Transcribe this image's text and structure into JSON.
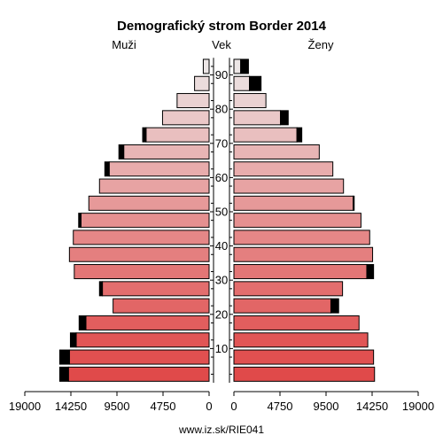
{
  "chart_data": {
    "type": "bar",
    "title": "Demografický strom Border 2014",
    "left_label": "Muži",
    "center_label": "Vek",
    "right_label": "Ženy",
    "footer": "www.iz.sk/RIE041",
    "x_max": 19000,
    "x_ticks_left": [
      "19000",
      "14250",
      "9500",
      "4750",
      "0"
    ],
    "x_ticks_right": [
      "0",
      "4750",
      "9500",
      "14250",
      "19000"
    ],
    "age_ticks": [
      10,
      20,
      30,
      40,
      50,
      60,
      70,
      80,
      90
    ],
    "age_groups": [
      "0-4",
      "5-9",
      "10-14",
      "15-19",
      "20-24",
      "25-29",
      "30-34",
      "35-39",
      "40-44",
      "45-49",
      "50-54",
      "55-59",
      "60-64",
      "65-69",
      "70-74",
      "75-79",
      "80-84",
      "85-89",
      "90+"
    ],
    "series": [
      {
        "name": "Muži",
        "base": [
          14500,
          14400,
          13700,
          12700,
          9900,
          11000,
          13900,
          14400,
          14000,
          13200,
          12400,
          11300,
          10300,
          8800,
          6500,
          4800,
          3300,
          1500,
          600
        ],
        "excess": [
          900,
          1000,
          600,
          700,
          0,
          300,
          0,
          0,
          0,
          250,
          0,
          0,
          450,
          500,
          350,
          0,
          0,
          0,
          0
        ]
      },
      {
        "name": "Ženy",
        "base": [
          14500,
          14400,
          13800,
          12900,
          10000,
          11200,
          13700,
          14300,
          14000,
          13100,
          12300,
          11300,
          10200,
          8800,
          6500,
          4800,
          3300,
          1600,
          700
        ],
        "excess": [
          0,
          0,
          0,
          0,
          800,
          0,
          700,
          0,
          0,
          0,
          100,
          0,
          0,
          0,
          500,
          800,
          0,
          1200,
          800
        ]
      }
    ],
    "colors": {
      "bottom": "#e04a4a",
      "top": "#ece6e6",
      "excess": "#000000",
      "axis": "#000000"
    }
  }
}
